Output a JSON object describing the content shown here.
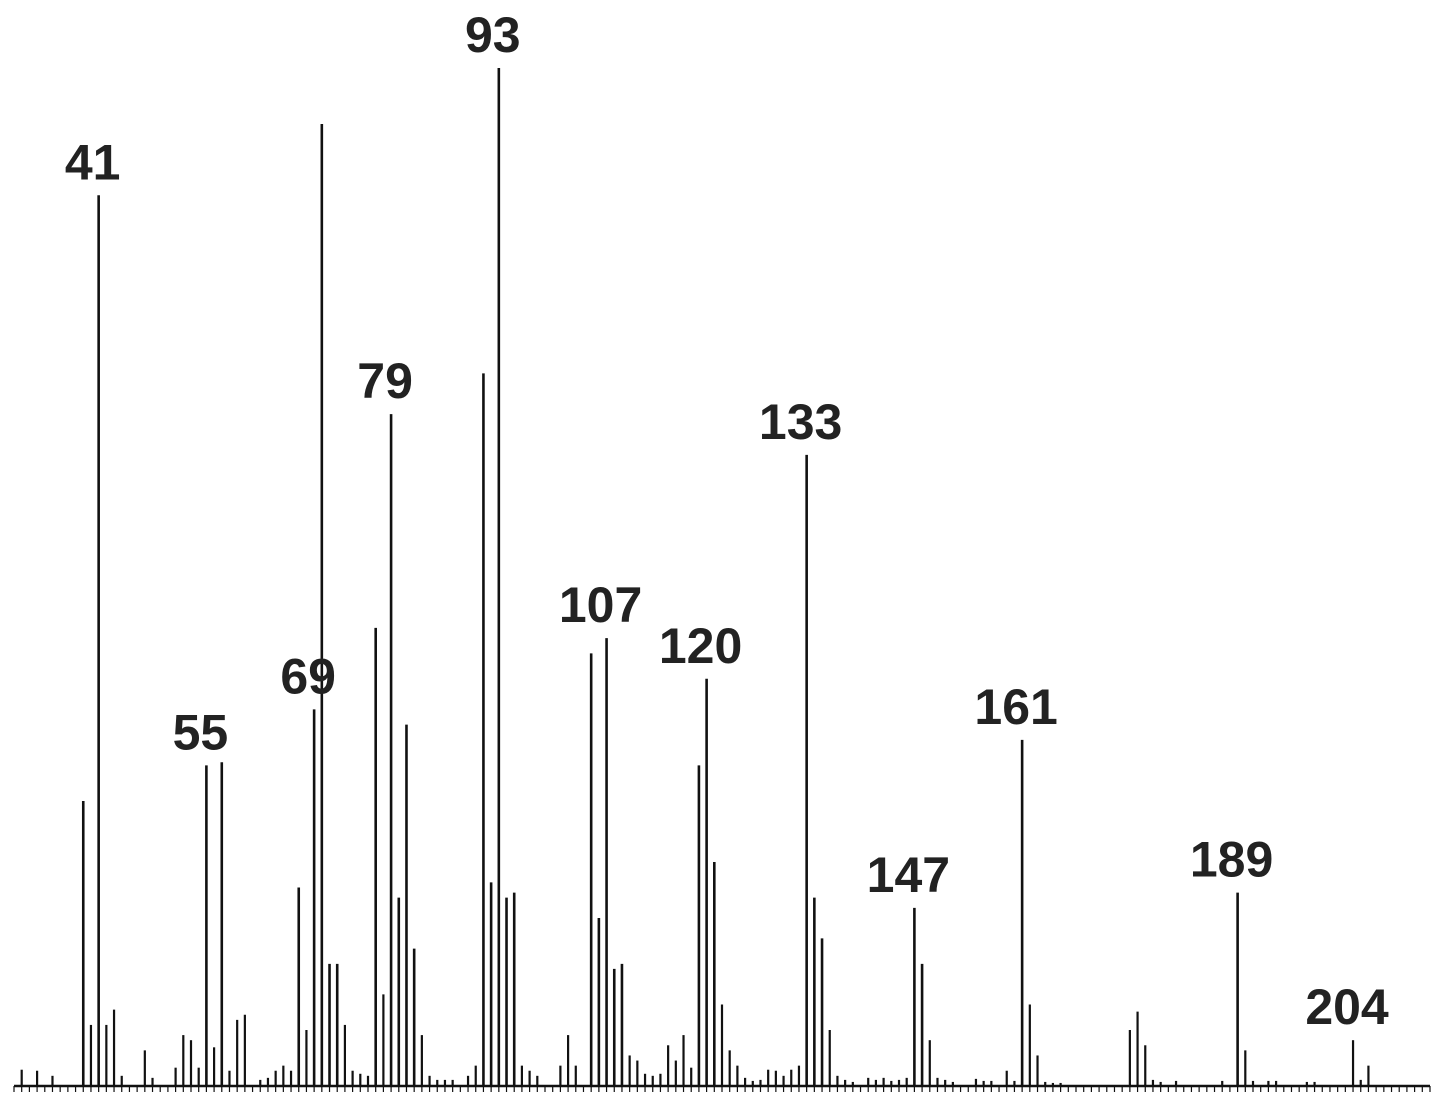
{
  "chart_data": {
    "type": "bar",
    "title": "",
    "xlabel": "",
    "ylabel": "",
    "xlim": [
      30,
      214
    ],
    "ylim": [
      0,
      100
    ],
    "bar_color": "#111111",
    "axis_color": "#111111",
    "label_color": "#222222",
    "labeled_peaks": [
      41,
      55,
      69,
      79,
      93,
      107,
      120,
      133,
      147,
      161,
      189,
      204
    ],
    "series": [
      {
        "peaks": [
          {
            "mz": 31,
            "i": 1.6
          },
          {
            "mz": 33,
            "i": 1.5
          },
          {
            "mz": 35,
            "i": 1.0
          },
          {
            "mz": 39,
            "i": 28.0
          },
          {
            "mz": 40,
            "i": 6.0
          },
          {
            "mz": 41,
            "i": 87.5
          },
          {
            "mz": 42,
            "i": 6.0
          },
          {
            "mz": 43,
            "i": 7.5
          },
          {
            "mz": 44,
            "i": 1.0
          },
          {
            "mz": 47,
            "i": 3.5
          },
          {
            "mz": 48,
            "i": 0.8
          },
          {
            "mz": 51,
            "i": 1.8
          },
          {
            "mz": 52,
            "i": 5.0
          },
          {
            "mz": 53,
            "i": 4.5
          },
          {
            "mz": 54,
            "i": 1.8
          },
          {
            "mz": 55,
            "i": 31.5
          },
          {
            "mz": 56,
            "i": 3.8
          },
          {
            "mz": 57,
            "i": 31.8
          },
          {
            "mz": 58,
            "i": 1.5
          },
          {
            "mz": 59,
            "i": 6.5
          },
          {
            "mz": 60,
            "i": 7.0
          },
          {
            "mz": 62,
            "i": 0.6
          },
          {
            "mz": 63,
            "i": 0.8
          },
          {
            "mz": 64,
            "i": 1.5
          },
          {
            "mz": 65,
            "i": 2.0
          },
          {
            "mz": 66,
            "i": 1.5
          },
          {
            "mz": 67,
            "i": 19.5
          },
          {
            "mz": 68,
            "i": 5.5
          },
          {
            "mz": 69,
            "i": 37.0
          },
          {
            "mz": 70,
            "i": 94.5
          },
          {
            "mz": 71,
            "i": 12.0
          },
          {
            "mz": 72,
            "i": 12.0
          },
          {
            "mz": 73,
            "i": 6.0
          },
          {
            "mz": 74,
            "i": 1.5
          },
          {
            "mz": 75,
            "i": 1.2
          },
          {
            "mz": 76,
            "i": 1.0
          },
          {
            "mz": 77,
            "i": 45.0
          },
          {
            "mz": 78,
            "i": 9.0
          },
          {
            "mz": 79,
            "i": 66.0
          },
          {
            "mz": 80,
            "i": 18.5
          },
          {
            "mz": 81,
            "i": 35.5
          },
          {
            "mz": 82,
            "i": 13.5
          },
          {
            "mz": 83,
            "i": 5.0
          },
          {
            "mz": 84,
            "i": 1.0
          },
          {
            "mz": 85,
            "i": 0.6
          },
          {
            "mz": 86,
            "i": 0.6
          },
          {
            "mz": 87,
            "i": 0.6
          },
          {
            "mz": 89,
            "i": 1.0
          },
          {
            "mz": 90,
            "i": 2.0
          },
          {
            "mz": 91,
            "i": 70.0
          },
          {
            "mz": 92,
            "i": 20.0
          },
          {
            "mz": 93,
            "i": 100.0
          },
          {
            "mz": 94,
            "i": 18.5
          },
          {
            "mz": 95,
            "i": 19.0
          },
          {
            "mz": 96,
            "i": 2.0
          },
          {
            "mz": 97,
            "i": 1.5
          },
          {
            "mz": 98,
            "i": 1.0
          },
          {
            "mz": 101,
            "i": 2.0
          },
          {
            "mz": 102,
            "i": 5.0
          },
          {
            "mz": 103,
            "i": 2.0
          },
          {
            "mz": 105,
            "i": 42.5
          },
          {
            "mz": 106,
            "i": 16.5
          },
          {
            "mz": 107,
            "i": 44.0
          },
          {
            "mz": 108,
            "i": 11.5
          },
          {
            "mz": 109,
            "i": 12.0
          },
          {
            "mz": 110,
            "i": 3.0
          },
          {
            "mz": 111,
            "i": 2.5
          },
          {
            "mz": 112,
            "i": 1.2
          },
          {
            "mz": 113,
            "i": 1.0
          },
          {
            "mz": 114,
            "i": 1.2
          },
          {
            "mz": 115,
            "i": 4.0
          },
          {
            "mz": 116,
            "i": 2.5
          },
          {
            "mz": 117,
            "i": 5.0
          },
          {
            "mz": 118,
            "i": 1.8
          },
          {
            "mz": 119,
            "i": 31.5
          },
          {
            "mz": 120,
            "i": 40.0
          },
          {
            "mz": 121,
            "i": 22.0
          },
          {
            "mz": 122,
            "i": 8.0
          },
          {
            "mz": 123,
            "i": 3.5
          },
          {
            "mz": 124,
            "i": 2.0
          },
          {
            "mz": 125,
            "i": 0.8
          },
          {
            "mz": 126,
            "i": 0.5
          },
          {
            "mz": 127,
            "i": 0.6
          },
          {
            "mz": 128,
            "i": 1.6
          },
          {
            "mz": 129,
            "i": 1.5
          },
          {
            "mz": 130,
            "i": 1.0
          },
          {
            "mz": 131,
            "i": 1.6
          },
          {
            "mz": 132,
            "i": 2.0
          },
          {
            "mz": 133,
            "i": 62.0
          },
          {
            "mz": 134,
            "i": 18.5
          },
          {
            "mz": 135,
            "i": 14.5
          },
          {
            "mz": 136,
            "i": 5.5
          },
          {
            "mz": 137,
            "i": 1.0
          },
          {
            "mz": 138,
            "i": 0.6
          },
          {
            "mz": 139,
            "i": 0.4
          },
          {
            "mz": 141,
            "i": 0.8
          },
          {
            "mz": 142,
            "i": 0.6
          },
          {
            "mz": 143,
            "i": 0.8
          },
          {
            "mz": 144,
            "i": 0.5
          },
          {
            "mz": 145,
            "i": 0.6
          },
          {
            "mz": 146,
            "i": 0.8
          },
          {
            "mz": 147,
            "i": 17.5
          },
          {
            "mz": 148,
            "i": 12.0
          },
          {
            "mz": 149,
            "i": 4.5
          },
          {
            "mz": 150,
            "i": 0.8
          },
          {
            "mz": 151,
            "i": 0.6
          },
          {
            "mz": 152,
            "i": 0.4
          },
          {
            "mz": 155,
            "i": 0.7
          },
          {
            "mz": 156,
            "i": 0.5
          },
          {
            "mz": 157,
            "i": 0.5
          },
          {
            "mz": 159,
            "i": 1.5
          },
          {
            "mz": 160,
            "i": 0.5
          },
          {
            "mz": 161,
            "i": 34.0
          },
          {
            "mz": 162,
            "i": 8.0
          },
          {
            "mz": 163,
            "i": 3.0
          },
          {
            "mz": 164,
            "i": 0.4
          },
          {
            "mz": 165,
            "i": 0.3
          },
          {
            "mz": 166,
            "i": 0.3
          },
          {
            "mz": 175,
            "i": 5.5
          },
          {
            "mz": 176,
            "i": 7.3
          },
          {
            "mz": 177,
            "i": 4.0
          },
          {
            "mz": 178,
            "i": 0.6
          },
          {
            "mz": 179,
            "i": 0.4
          },
          {
            "mz": 181,
            "i": 0.5
          },
          {
            "mz": 187,
            "i": 0.5
          },
          {
            "mz": 189,
            "i": 19.0
          },
          {
            "mz": 190,
            "i": 3.5
          },
          {
            "mz": 191,
            "i": 0.5
          },
          {
            "mz": 193,
            "i": 0.5
          },
          {
            "mz": 194,
            "i": 0.5
          },
          {
            "mz": 198,
            "i": 0.4
          },
          {
            "mz": 199,
            "i": 0.4
          },
          {
            "mz": 204,
            "i": 4.5
          },
          {
            "mz": 205,
            "i": 0.6
          },
          {
            "mz": 206,
            "i": 2.0
          }
        ]
      }
    ]
  }
}
